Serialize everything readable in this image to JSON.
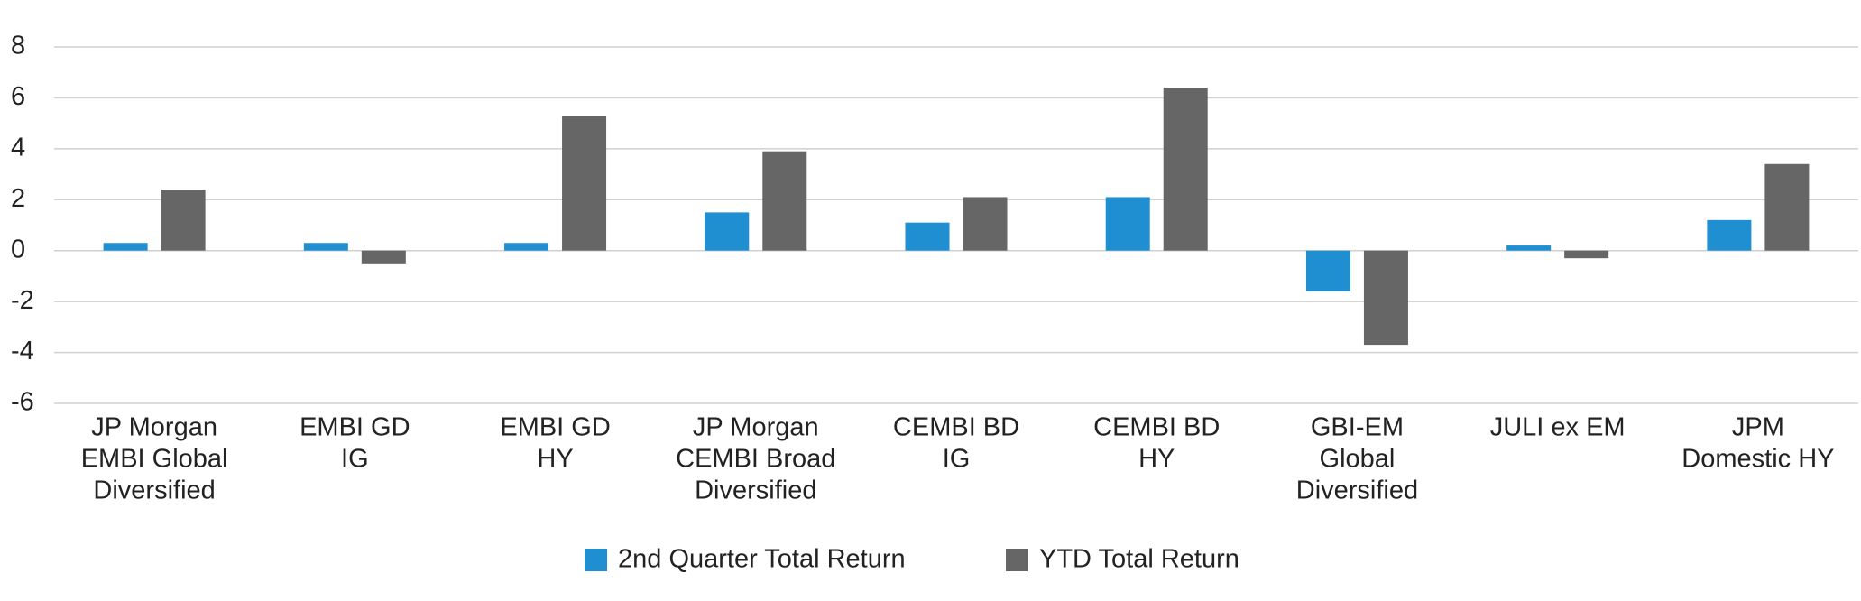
{
  "chart_data": {
    "type": "bar",
    "categories": [
      [
        "JP Morgan",
        "EMBI Global",
        "Diversified"
      ],
      [
        "EMBI GD",
        "IG"
      ],
      [
        "EMBI GD",
        "HY"
      ],
      [
        "JP Morgan",
        "CEMBI Broad",
        "Diversified"
      ],
      [
        "CEMBI BD",
        "IG"
      ],
      [
        "CEMBI BD",
        "HY"
      ],
      [
        "GBI-EM",
        "Global",
        "Diversified"
      ],
      [
        "JULI ex EM"
      ],
      [
        "JPM",
        "Domestic HY"
      ]
    ],
    "series": [
      {
        "name": "2nd Quarter Total Return",
        "color": "#1f8fd1",
        "values": [
          0.3,
          0.3,
          0.3,
          1.5,
          1.1,
          2.1,
          -1.6,
          0.2,
          1.2
        ]
      },
      {
        "name": "YTD Total Return",
        "color": "#666666",
        "values": [
          2.4,
          -0.5,
          5.3,
          3.9,
          2.1,
          6.4,
          -3.7,
          -0.3,
          3.4
        ]
      }
    ],
    "ylim": [
      -6,
      8
    ],
    "yticks": [
      -6,
      -4,
      -2,
      0,
      2,
      4,
      6,
      8
    ],
    "grid": true,
    "legend": "bottom"
  }
}
